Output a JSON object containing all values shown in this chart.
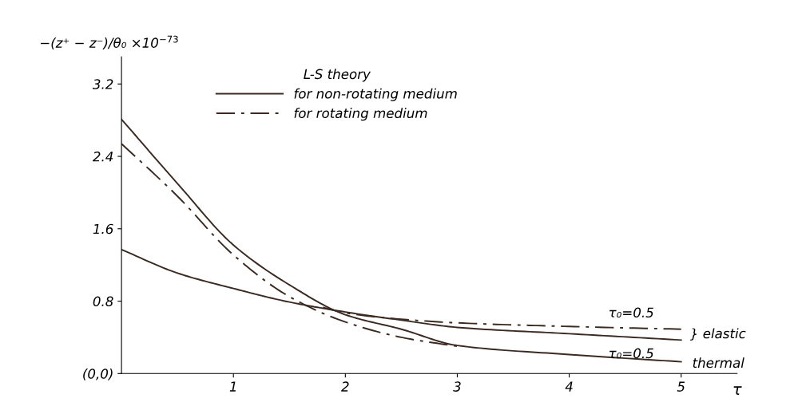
{
  "chart_data": {
    "type": "line",
    "xlabel": "τ",
    "ylabel": "−(z⁺ − z⁻)/θ₀ ×10$^{−73}$",
    "xlim": [
      0,
      5.5
    ],
    "ylim": [
      0,
      3.5
    ],
    "xticks": [
      1,
      2,
      3,
      4,
      5
    ],
    "yticks": [
      {
        "value": 0,
        "label": "(0,0)"
      },
      0.8,
      1.6,
      2.4,
      3.2
    ],
    "grid": false,
    "legend": "top",
    "legend_title": "L-S theory",
    "marker": "none",
    "series": [
      {
        "name": "for non-rotating medium",
        "color": "#3a2a22",
        "line_style": "solid",
        "x": [
          0,
          0.5,
          1,
          1.5,
          2,
          2.5,
          3,
          4,
          5
        ],
        "values": [
          2.81,
          2.1,
          1.42,
          0.98,
          0.65,
          0.49,
          0.31,
          0.21,
          0.13
        ]
      },
      {
        "name": "for rotating medium",
        "color": "#3a2a22",
        "line_style": "dashdot",
        "x": [
          0,
          0.5,
          1,
          1.5,
          2,
          2.5,
          3
        ],
        "values": [
          2.54,
          1.96,
          1.31,
          0.85,
          0.57,
          0.4,
          0.3
        ]
      },
      {
        "color": "#3a2a22",
        "line_style": "solid",
        "x": [
          0,
          0.5,
          1,
          1.5,
          2,
          2.5,
          3,
          4,
          5
        ],
        "values": [
          1.37,
          1.11,
          0.94,
          0.79,
          0.68,
          0.59,
          0.51,
          0.44,
          0.37
        ]
      },
      {
        "color": "#3a2a22",
        "line_style": "dashdot",
        "x": [
          1.8,
          2,
          2.5,
          3,
          4,
          5
        ],
        "values": [
          0.73,
          0.67,
          0.6,
          0.56,
          0.52,
          0.49
        ]
      }
    ],
    "annotations": [
      "τ₀=0.5",
      "} elastic",
      "τ₀=0.5",
      "thermal"
    ]
  }
}
